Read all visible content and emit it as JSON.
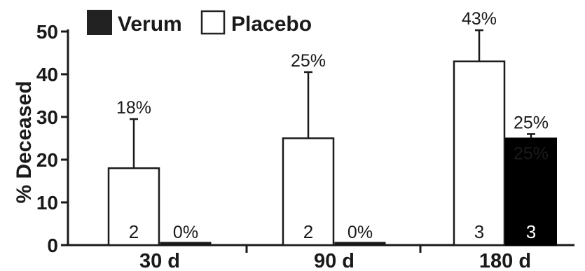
{
  "chart_data": {
    "type": "bar",
    "title": "",
    "xlabel": "",
    "ylabel": "% Deceased",
    "ylim": [
      0,
      50
    ],
    "yticks": [
      "0",
      "10",
      "20",
      "30",
      "40",
      "50"
    ],
    "grid": false,
    "legend_position": "top-left",
    "categories": [
      "30 d",
      "90 d",
      "180 d"
    ],
    "series": [
      {
        "name": "Placebo",
        "color": "#ffffff",
        "values": [
          18,
          25,
          43
        ],
        "error_upper": [
          29.5,
          40.5,
          50.3
        ],
        "value_labels": [
          "18%",
          "25%",
          "43%"
        ],
        "n_labels": [
          "2",
          "2",
          "3"
        ]
      },
      {
        "name": "Verum",
        "color": "#000000",
        "values": [
          0,
          0,
          25
        ],
        "error_upper": [
          0,
          0,
          26
        ],
        "value_labels": [
          "0%",
          "0%",
          "25%"
        ],
        "n_labels": [
          "",
          "",
          "3"
        ]
      }
    ],
    "annotations": [
      "25%"
    ]
  },
  "legend": [
    {
      "label": "Verum",
      "swatch": "#222222"
    },
    {
      "label": "Placebo",
      "swatch": "#ffffff"
    }
  ]
}
